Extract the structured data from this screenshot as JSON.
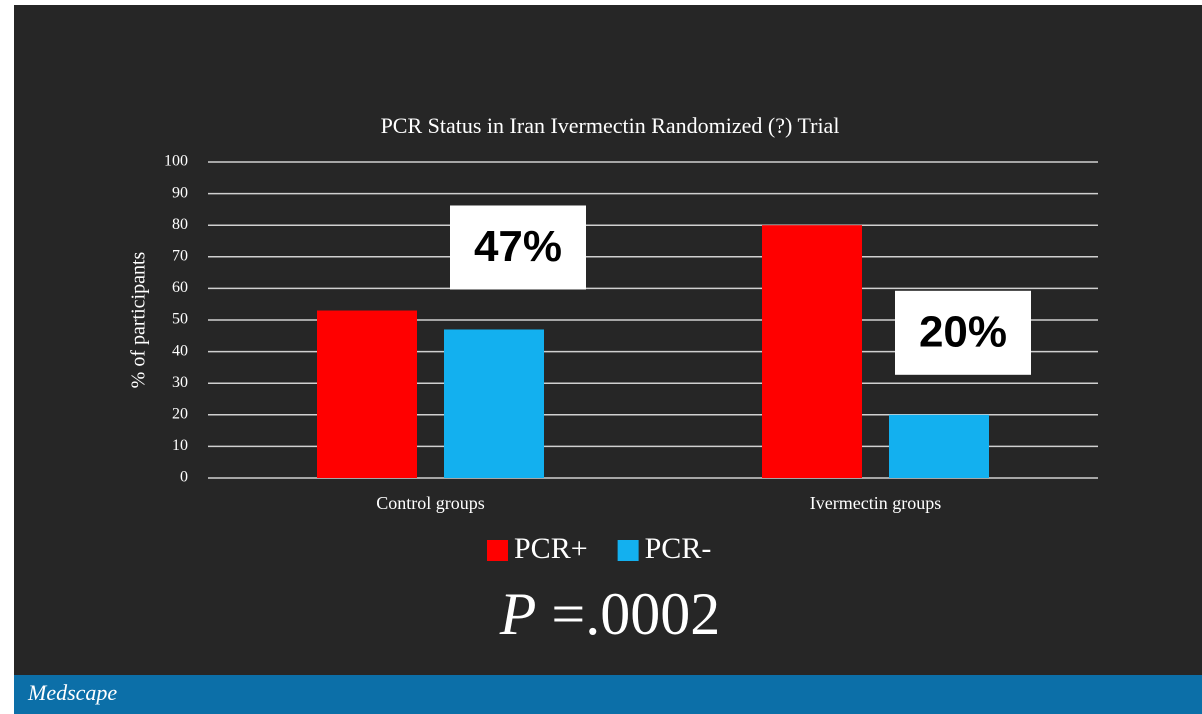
{
  "chart_data": {
    "type": "bar",
    "title": "PCR Status in Iran Ivermectin Randomized (?) Trial",
    "y_label": "% of participants",
    "categories": [
      "Control groups",
      "Ivermectin groups"
    ],
    "series": [
      {
        "name": "PCR+",
        "color": "#ff0000",
        "values": [
          53,
          80
        ]
      },
      {
        "name": "PCR-",
        "color": "#13b0ef",
        "values": [
          47,
          20
        ],
        "value_labels": [
          "47%",
          "20%"
        ]
      }
    ],
    "ylim": [
      0,
      100
    ],
    "yticks": [
      0,
      10,
      20,
      30,
      40,
      50,
      60,
      70,
      80,
      90,
      100
    ],
    "grid": true,
    "annotation": {
      "symbol": "P",
      "text": " =.0002"
    }
  },
  "footer": "Medscape"
}
